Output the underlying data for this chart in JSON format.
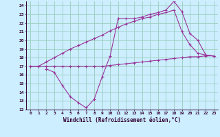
{
  "xlabel": "Windchill (Refroidissement éolien,°C)",
  "background_color": "#cceeff",
  "grid_color": "#99ccbb",
  "line_color": "#993399",
  "xlim": [
    -0.5,
    23.5
  ],
  "ylim": [
    12,
    24.5
  ],
  "yticks": [
    12,
    13,
    14,
    15,
    16,
    17,
    18,
    19,
    20,
    21,
    22,
    23,
    24
  ],
  "xticks": [
    0,
    1,
    2,
    3,
    4,
    5,
    6,
    7,
    8,
    9,
    10,
    11,
    12,
    13,
    14,
    15,
    16,
    17,
    18,
    19,
    20,
    21,
    22,
    23
  ],
  "series1_x": [
    0,
    1,
    2,
    3,
    4,
    5,
    6,
    7,
    8,
    9,
    10,
    11,
    12,
    13,
    14,
    15,
    16,
    17,
    18,
    19,
    20,
    21,
    22,
    23
  ],
  "series1_y": [
    17,
    17,
    17,
    17,
    17,
    17,
    17,
    17,
    17,
    17,
    17.1,
    17.2,
    17.3,
    17.4,
    17.5,
    17.6,
    17.7,
    17.8,
    17.9,
    18.0,
    18.1,
    18.1,
    18.2,
    18.2
  ],
  "series2_x": [
    0,
    1,
    2,
    3,
    4,
    5,
    6,
    7,
    8,
    9,
    10,
    11,
    12,
    13,
    14,
    15,
    16,
    17,
    18,
    19,
    20,
    21,
    22,
    23
  ],
  "series2_y": [
    17,
    17,
    17.5,
    18.0,
    18.5,
    19.0,
    19.4,
    19.8,
    20.2,
    20.6,
    21.1,
    21.5,
    21.9,
    22.2,
    22.5,
    22.7,
    23.0,
    23.2,
    23.5,
    21.0,
    19.5,
    18.5,
    18.3,
    18.2
  ],
  "series3_x": [
    2,
    3,
    4,
    5,
    6,
    7,
    8,
    9,
    10,
    11,
    12,
    13,
    14,
    15,
    16,
    17,
    18,
    19,
    20,
    21,
    22,
    23
  ],
  "series3_y": [
    16.7,
    16.3,
    14.8,
    13.5,
    12.8,
    12.2,
    13.2,
    15.8,
    18.2,
    22.5,
    22.5,
    22.5,
    22.7,
    23.0,
    23.2,
    23.5,
    24.5,
    23.3,
    20.8,
    20.0,
    18.3,
    18.2
  ]
}
